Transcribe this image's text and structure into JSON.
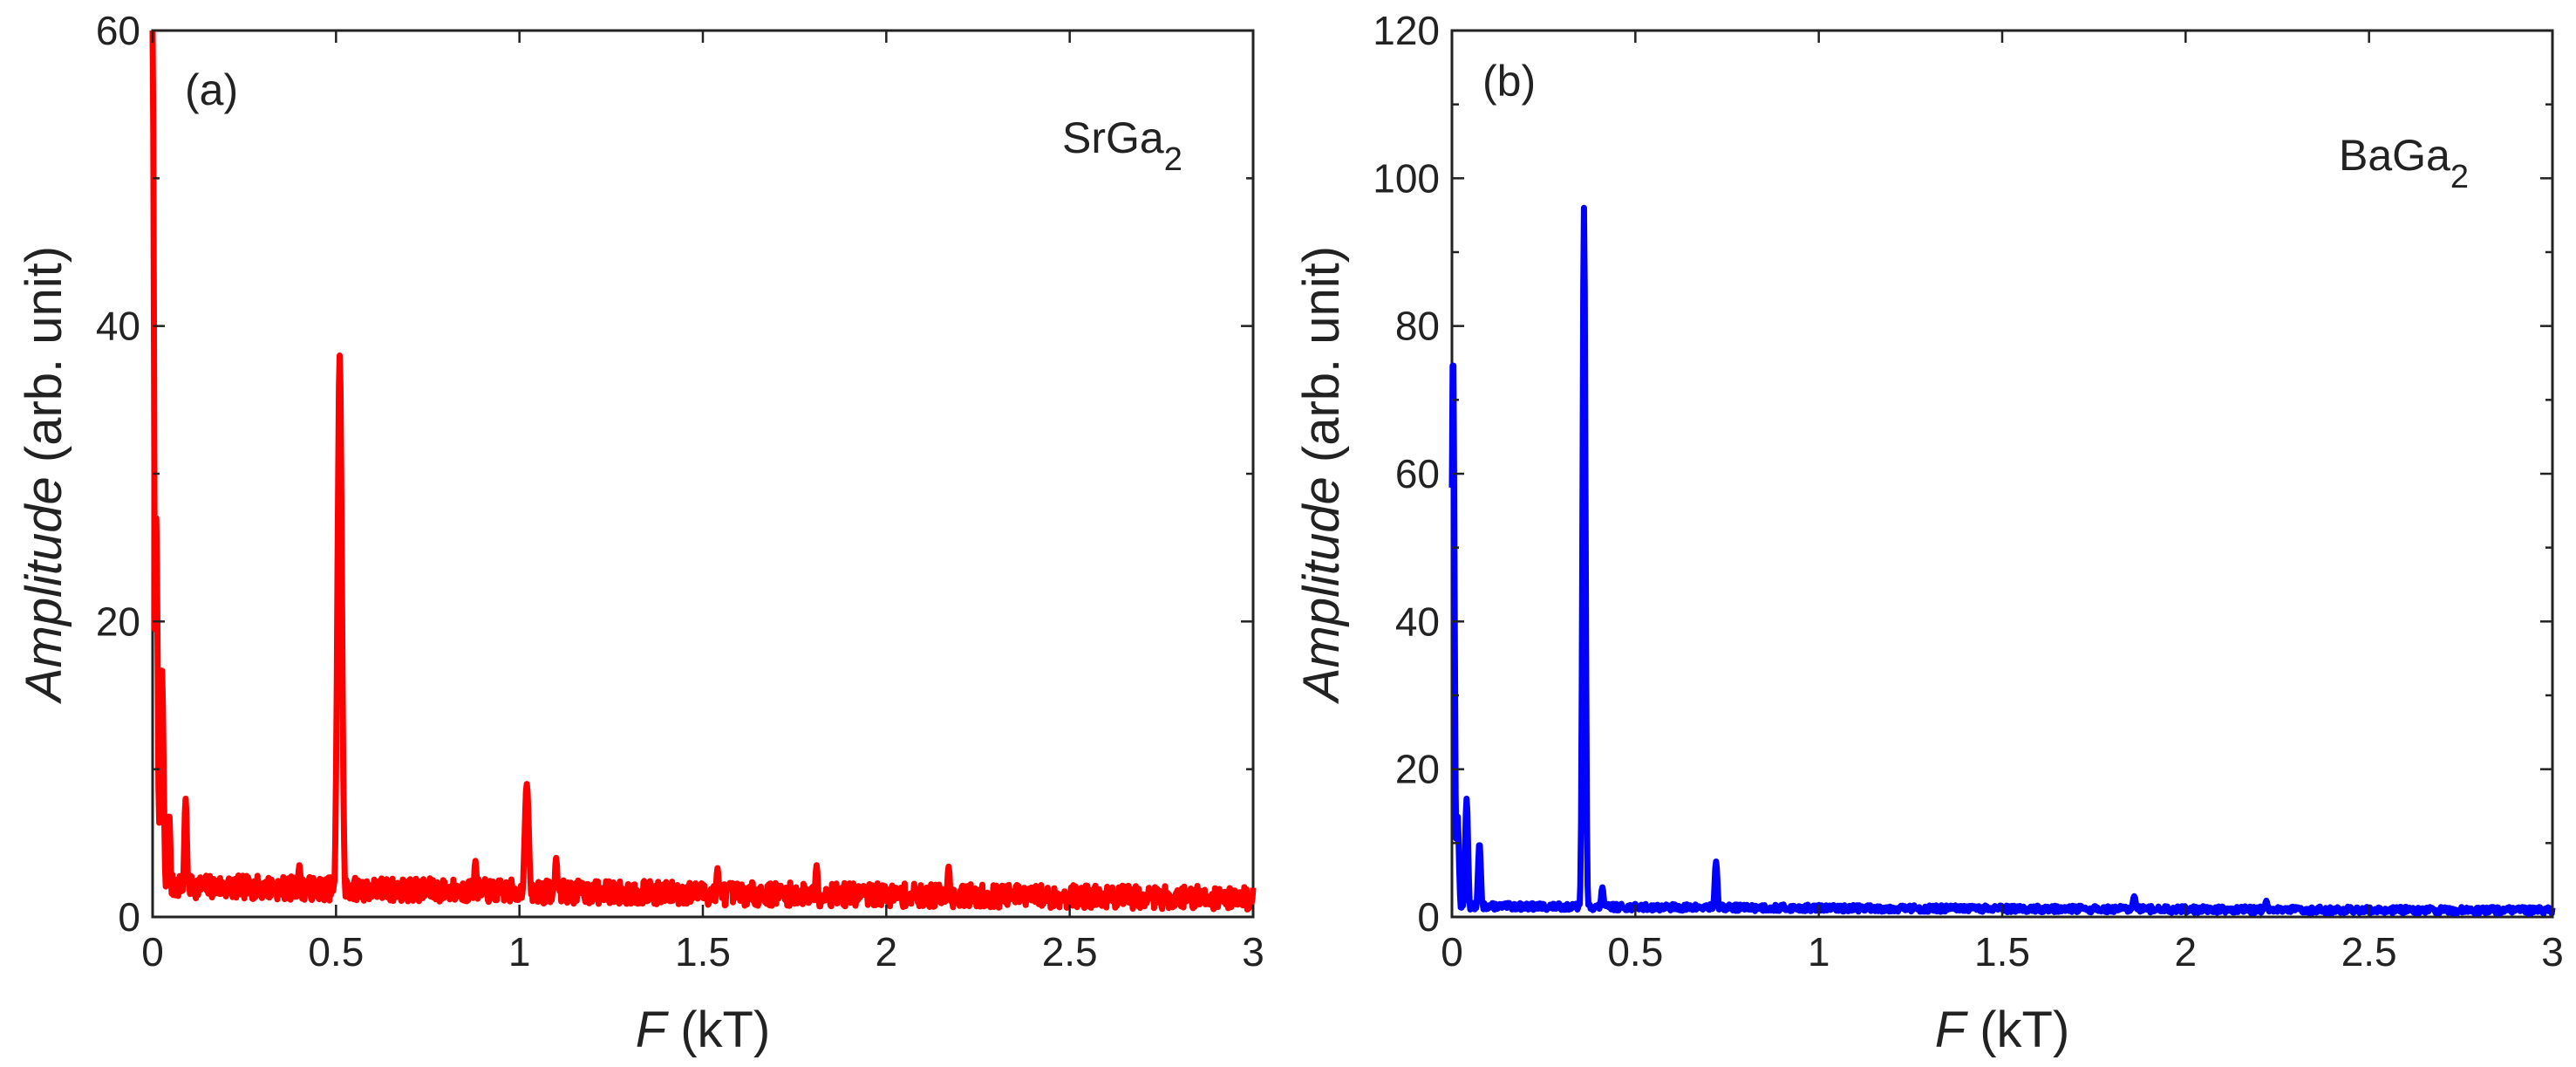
{
  "chart_data": [
    {
      "type": "line",
      "panel_label": "(a)",
      "sample_label": "SrGa",
      "sample_subscript": "2",
      "xlabel_italic": "F",
      "xlabel_rest": " (kT)",
      "ylabel_italic": "Amplitude",
      "ylabel_rest": " (arb. unit)",
      "xlim": [
        0,
        3
      ],
      "ylim": [
        0,
        60
      ],
      "xticks": [
        0,
        0.5,
        1,
        1.5,
        2,
        2.5,
        3
      ],
      "xtick_labels": [
        "0",
        "0.5",
        "1",
        "1.5",
        "2",
        "2.5",
        "3"
      ],
      "yticks": [
        0,
        20,
        40,
        60
      ],
      "ytick_labels": [
        "0",
        "20",
        "40",
        "60"
      ],
      "yminor_ticks": [
        10,
        30,
        50
      ],
      "color": "#ff0000",
      "series": [
        {
          "name": "SrGa2",
          "baseline": 1.8,
          "noise": 1.6,
          "seed": 7,
          "peaks": [
            {
              "x": 0.0,
              "y": 60,
              "width": 0.004
            },
            {
              "x": 0.01,
              "y": 27,
              "width": 0.004
            },
            {
              "x": 0.025,
              "y": 17,
              "width": 0.005
            },
            {
              "x": 0.045,
              "y": 7,
              "width": 0.004
            },
            {
              "x": 0.09,
              "y": 8,
              "width": 0.004
            },
            {
              "x": 0.51,
              "y": 38,
              "width": 0.006
            },
            {
              "x": 1.02,
              "y": 9,
              "width": 0.006
            },
            {
              "x": 1.1,
              "y": 4,
              "width": 0.004
            },
            {
              "x": 0.4,
              "y": 3.5,
              "width": 0.004
            },
            {
              "x": 0.88,
              "y": 3.8,
              "width": 0.004
            },
            {
              "x": 1.54,
              "y": 3.3,
              "width": 0.004
            },
            {
              "x": 1.81,
              "y": 3.5,
              "width": 0.004
            },
            {
              "x": 2.17,
              "y": 3.4,
              "width": 0.004
            }
          ]
        }
      ]
    },
    {
      "type": "line",
      "panel_label": "(b)",
      "sample_label": "BaGa",
      "sample_subscript": "2",
      "xlabel_italic": "F",
      "xlabel_rest": " (kT)",
      "ylabel_italic": "Amplitude",
      "ylabel_rest": " (arb. unit)",
      "xlim": [
        0,
        3
      ],
      "ylim": [
        0,
        120
      ],
      "xticks": [
        0,
        0.5,
        1,
        1.5,
        2,
        2.5,
        3
      ],
      "xtick_labels": [
        "0",
        "0.5",
        "1",
        "1.5",
        "2",
        "2.5",
        "3"
      ],
      "yticks": [
        0,
        20,
        40,
        60,
        80,
        100,
        120
      ],
      "ytick_labels": [
        "0",
        "20",
        "40",
        "60",
        "80",
        "100",
        "120"
      ],
      "yminor_ticks": [
        10,
        30,
        50,
        70,
        90,
        110
      ],
      "color": "#0000ff",
      "series": [
        {
          "name": "BaGa2",
          "baseline": 1.3,
          "noise": 0.9,
          "seed": 13,
          "peaks": [
            {
              "x": 0.003,
              "y": 77,
              "width": 0.004
            },
            {
              "x": 0.015,
              "y": 14,
              "width": 0.004
            },
            {
              "x": 0.04,
              "y": 16,
              "width": 0.004
            },
            {
              "x": 0.075,
              "y": 10,
              "width": 0.004
            },
            {
              "x": 0.36,
              "y": 96,
              "width": 0.004
            },
            {
              "x": 0.41,
              "y": 4,
              "width": 0.004
            },
            {
              "x": 0.72,
              "y": 7.5,
              "width": 0.004
            },
            {
              "x": 1.86,
              "y": 2.8,
              "width": 0.005
            },
            {
              "x": 2.22,
              "y": 2.2,
              "width": 0.004
            }
          ]
        }
      ]
    }
  ]
}
